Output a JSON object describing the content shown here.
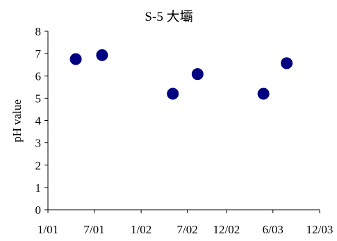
{
  "chart_data": {
    "type": "scatter",
    "title": "S-5 大壩",
    "xlabel": "",
    "ylabel": "pH value",
    "x_tick_labels": [
      "1/01",
      "7/01",
      "1/02",
      "7/02",
      "12/02",
      "6/03",
      "12/03"
    ],
    "y_tick_labels": [
      "0",
      "1",
      "2",
      "3",
      "4",
      "5",
      "6",
      "7",
      "8"
    ],
    "ylim": [
      0,
      8
    ],
    "grid": false,
    "legend": "none",
    "marker_color": "#000080",
    "series": [
      {
        "points": [
          {
            "x": "2001-04-20",
            "y": 6.75
          },
          {
            "x": "2001-08-01",
            "y": 6.93
          },
          {
            "x": "2002-05-05",
            "y": 5.2
          },
          {
            "x": "2002-08-10",
            "y": 6.08
          },
          {
            "x": "2003-04-25",
            "y": 5.2
          },
          {
            "x": "2003-07-25",
            "y": 6.57
          }
        ]
      }
    ]
  }
}
